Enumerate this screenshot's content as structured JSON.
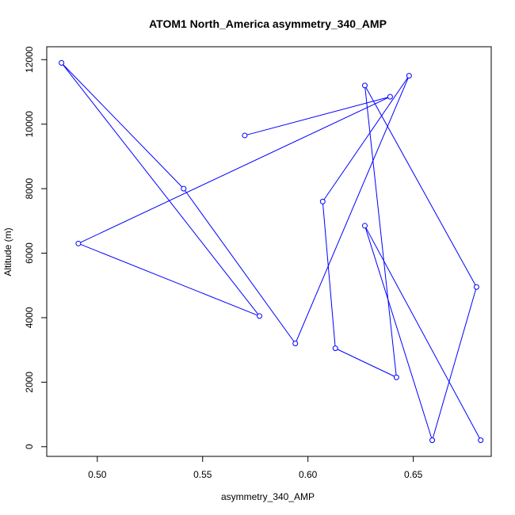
{
  "chart_data": {
    "type": "line",
    "title": "ATOM1 North_America asymmetry_340_AMP",
    "xlabel": "asymmetry_340_AMP",
    "ylabel": "Altitude (m)",
    "xlim": [
      0.476,
      0.687
    ],
    "ylim": [
      -300,
      12400
    ],
    "x_ticks": [
      0.5,
      0.55,
      0.6,
      0.65
    ],
    "x_tick_labels": [
      "0.50",
      "0.55",
      "0.60",
      "0.65"
    ],
    "y_ticks": [
      0,
      2000,
      4000,
      6000,
      8000,
      10000,
      12000
    ],
    "y_tick_labels": [
      "0",
      "2000",
      "4000",
      "6000",
      "8000",
      "10000",
      "12000"
    ],
    "grid": false,
    "series_color": "#0000ff",
    "points": [
      {
        "x": 0.682,
        "y": 200
      },
      {
        "x": 0.627,
        "y": 6850
      },
      {
        "x": 0.659,
        "y": 200
      },
      {
        "x": 0.68,
        "y": 4950
      },
      {
        "x": 0.627,
        "y": 11200
      },
      {
        "x": 0.642,
        "y": 2150
      },
      {
        "x": 0.613,
        "y": 3050
      },
      {
        "x": 0.607,
        "y": 7600
      },
      {
        "x": 0.648,
        "y": 11500
      },
      {
        "x": 0.594,
        "y": 3200
      },
      {
        "x": 0.541,
        "y": 8000
      },
      {
        "x": 0.483,
        "y": 11900
      },
      {
        "x": 0.577,
        "y": 4050
      },
      {
        "x": 0.491,
        "y": 6300
      },
      {
        "x": 0.639,
        "y": 10850
      },
      {
        "x": 0.57,
        "y": 9650
      }
    ]
  }
}
